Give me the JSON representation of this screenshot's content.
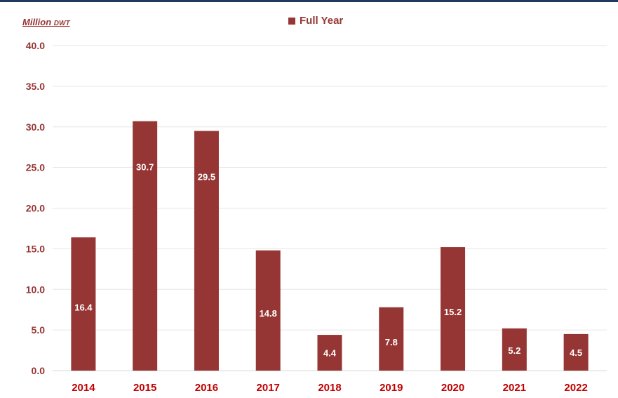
{
  "chart_data": {
    "type": "bar",
    "unit_label_main": "Million",
    "unit_label_sub": "DWT",
    "categories": [
      "2014",
      "2015",
      "2016",
      "2017",
      "2018",
      "2019",
      "2020",
      "2021",
      "2022"
    ],
    "series": [
      {
        "name": "Full Year",
        "values": [
          16.4,
          30.7,
          29.5,
          14.8,
          4.4,
          7.8,
          15.2,
          5.2,
          4.5
        ]
      }
    ],
    "data_labels": [
      "16.4",
      "30.7",
      "29.5",
      "14.8",
      "4.4",
      "7.8",
      "15.2",
      "5.2",
      "4.5"
    ],
    "y_ticks": [
      "0.0",
      "5.0",
      "10.0",
      "15.0",
      "20.0",
      "25.0",
      "30.0",
      "35.0",
      "40.0"
    ],
    "ylim": [
      0,
      40
    ],
    "y_step": 5,
    "grid": true,
    "legend_position": "top-center",
    "colors": {
      "bar": "#963634",
      "text": "#963634",
      "grid": "#e6e6e6",
      "label": "#ffffff"
    }
  }
}
